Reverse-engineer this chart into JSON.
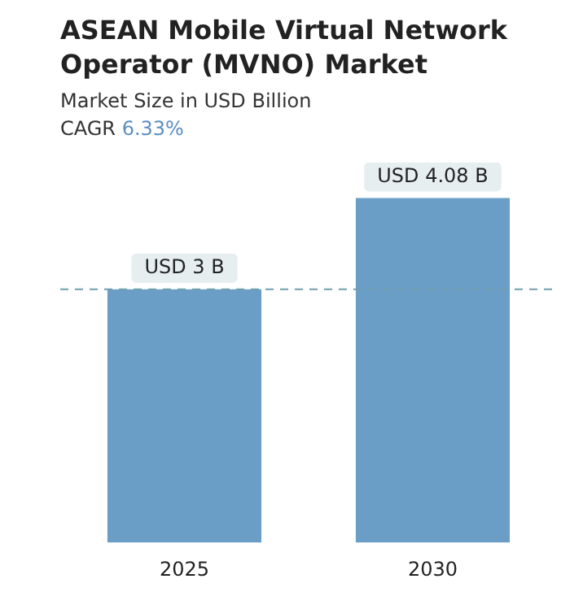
{
  "chart_data": {
    "type": "bar",
    "title": "ASEAN Mobile Virtual Network Operator (MVNO) Market",
    "subtitle": "Market Size in USD Billion",
    "annotations": [
      "CAGR 6.33%"
    ],
    "categories": [
      "2025",
      "2030"
    ],
    "values": [
      3,
      4.08
    ],
    "color": "#6b9ec6",
    "value_labels": [
      "USD 3 B",
      "USD 4.08 B"
    ],
    "ref_lines": [
      {
        "axis": "y",
        "value": 3,
        "color": "#6f9fad",
        "line_style": "dashed"
      }
    ],
    "grid": false,
    "legend": false
  }
}
